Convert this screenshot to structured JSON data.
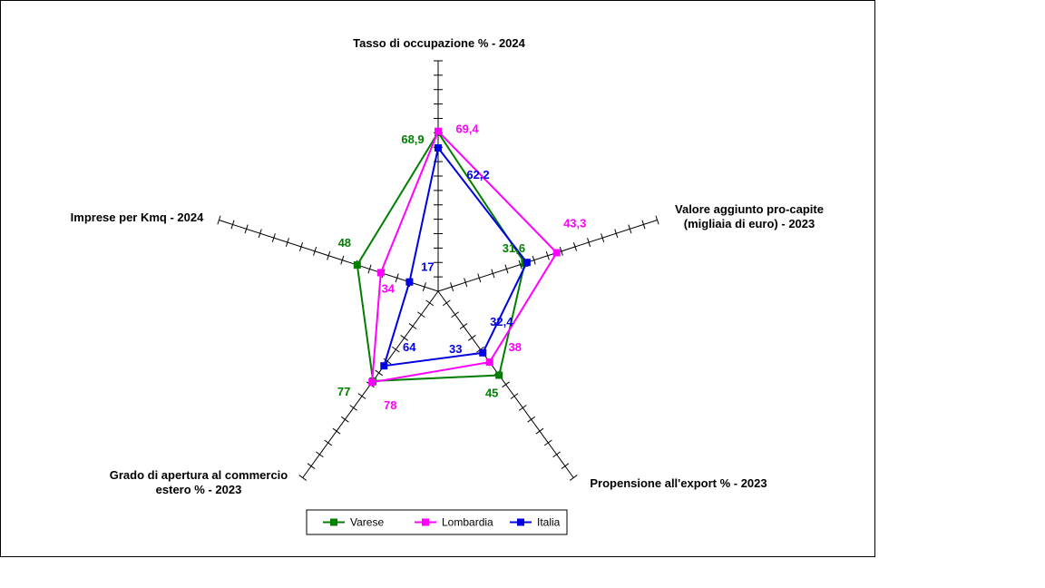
{
  "chart_data": {
    "type": "radar",
    "axes": [
      {
        "label_lines": [
          "Tasso di occupazione % - 2024"
        ]
      },
      {
        "label_lines": [
          "Valore aggiunto pro-capite",
          "(migliaia di euro) - 2023"
        ]
      },
      {
        "label_lines": [
          "Propensione all'export % - 2023"
        ]
      },
      {
        "label_lines": [
          "Grado di apertura al commercio",
          "estero % - 2023"
        ]
      },
      {
        "label_lines": [
          "Imprese per Kmq - 2024"
        ]
      }
    ],
    "axis_max": [
      100,
      80,
      100,
      160,
      130
    ],
    "tick_count": 16,
    "series": [
      {
        "name": "Varese",
        "color": "#007f00",
        "values": [
          68.9,
          31.6,
          45,
          77,
          48
        ],
        "labels": [
          "68,9",
          "31,6",
          "45",
          "77",
          "48"
        ]
      },
      {
        "name": "Lombardia",
        "color": "#ff00ff",
        "values": [
          69.4,
          43.3,
          38,
          78,
          34
        ],
        "labels": [
          "69,4",
          "43,3",
          "38",
          "78",
          "34"
        ]
      },
      {
        "name": "Italia",
        "color": "#0000e0",
        "values": [
          62.2,
          32.4,
          33,
          64,
          17
        ],
        "labels": [
          "62,2",
          "32,4",
          "33",
          "64",
          "17"
        ]
      }
    ],
    "legend_position": "bottom"
  }
}
